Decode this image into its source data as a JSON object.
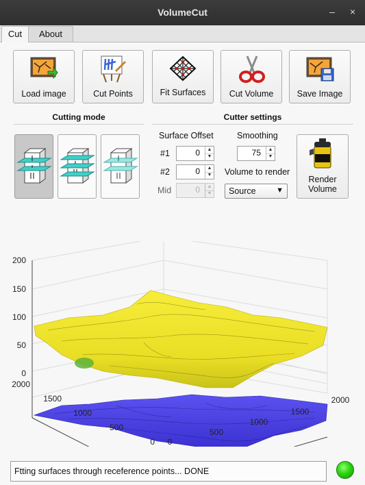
{
  "window": {
    "title": "VolumeCut",
    "minimize": "–",
    "close": "×"
  },
  "tabs": [
    {
      "label": "Cut",
      "active": true
    },
    {
      "label": "About",
      "active": false
    }
  ],
  "toolbar": {
    "load_image": "Load image",
    "cut_points": "Cut Points",
    "fit_surfaces": "Fit Surfaces",
    "cut_volume": "Cut Volume",
    "save_image": "Save Image"
  },
  "cutting_mode": {
    "title": "Cutting mode",
    "selected_index": 0
  },
  "cutter_settings": {
    "title": "Cutter settings",
    "surface_offset_label": "Surface Offset",
    "row1_label": "#1",
    "row1_value": "0",
    "row2_label": "#2",
    "row2_value": "0",
    "mid_label": "Mid",
    "mid_value": "0",
    "smoothing_label": "Smoothing",
    "smoothing_value": "75",
    "volume_label": "Volume to render",
    "volume_selected": "Source",
    "render_line1": "Render",
    "render_line2": "Volume"
  },
  "plot": {
    "z_ticks": [
      "200",
      "150",
      "100",
      "50",
      "0"
    ],
    "y_ticks": [
      "2000",
      "1500",
      "1000",
      "500",
      "0"
    ],
    "x_ticks": [
      "0",
      "500",
      "1000",
      "1500",
      "2000"
    ],
    "top_surface_color": "#f2e62a",
    "bottom_surface_color": "#4a3fe0"
  },
  "status": {
    "text": "Ftting surfaces through receference points... DONE",
    "led_color": "#2bd40f"
  }
}
